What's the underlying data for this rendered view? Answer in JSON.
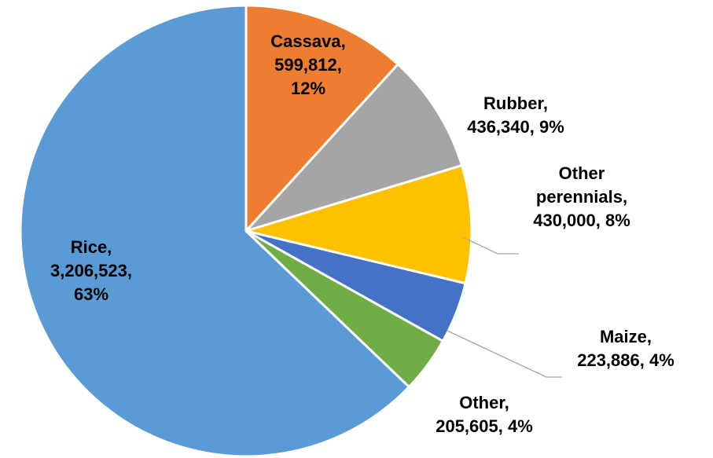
{
  "chart_data": {
    "type": "pie",
    "start_angle_deg": 0,
    "direction": "clockwise",
    "slices": [
      {
        "name": "Cassava",
        "value": 599812,
        "percent": 12,
        "color": "#ED7D31",
        "label_lines": [
          "Cassava,",
          "599,812,",
          "12%"
        ]
      },
      {
        "name": "Rubber",
        "value": 436340,
        "percent": 9,
        "color": "#A5A5A5",
        "label_lines": [
          "Rubber,",
          "436,340, 9%"
        ]
      },
      {
        "name": "Other perennials",
        "value": 430000,
        "percent": 8,
        "color": "#FFC000",
        "label_lines": [
          "Other",
          "perennials,",
          "430,000, 8%"
        ]
      },
      {
        "name": "Maize",
        "value": 223886,
        "percent": 4,
        "color": "#4472C4",
        "label_lines": [
          "Maize,",
          "223,886, 4%"
        ]
      },
      {
        "name": "Other",
        "value": 205605,
        "percent": 4,
        "color": "#70AD47",
        "label_lines": [
          "Other,",
          "205,605, 4%"
        ]
      },
      {
        "name": "Rice",
        "value": 3206523,
        "percent": 63,
        "color": "#5B9BD5",
        "label_lines": [
          "Rice,",
          "3,206,523,",
          "63%"
        ]
      }
    ]
  }
}
